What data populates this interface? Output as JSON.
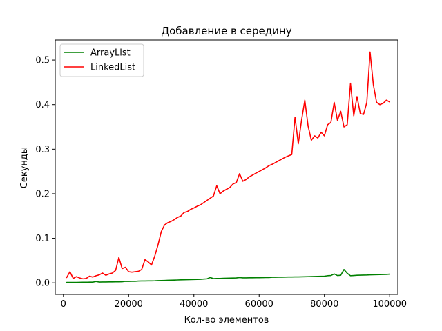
{
  "chart_data": {
    "type": "line",
    "title": "Добавление в середину",
    "xlabel": "Кол-во элементов",
    "ylabel": "Секунды",
    "xlim": [
      -2500,
      102500
    ],
    "ylim": [
      -0.026,
      0.545
    ],
    "xticks": [
      0,
      20000,
      40000,
      60000,
      80000,
      100000
    ],
    "xtick_labels": [
      "0",
      "20000",
      "40000",
      "60000",
      "80000",
      "100000"
    ],
    "yticks": [
      0.0,
      0.1,
      0.2,
      0.3,
      0.4,
      0.5
    ],
    "ytick_labels": [
      "0.0",
      "0.1",
      "0.2",
      "0.3",
      "0.4",
      "0.5"
    ],
    "grid": false,
    "legend": "top-left",
    "x": [
      1000,
      2000,
      3000,
      4000,
      5000,
      6000,
      7000,
      8000,
      9000,
      10000,
      11000,
      12000,
      13000,
      14000,
      15000,
      16000,
      17000,
      18000,
      19000,
      20000,
      21000,
      22000,
      23000,
      24000,
      25000,
      26000,
      27000,
      28000,
      29000,
      30000,
      31000,
      32000,
      33000,
      34000,
      35000,
      36000,
      37000,
      38000,
      39000,
      40000,
      41000,
      42000,
      43000,
      44000,
      45000,
      46000,
      47000,
      48000,
      49000,
      50000,
      51000,
      52000,
      53000,
      54000,
      55000,
      56000,
      57000,
      58000,
      59000,
      60000,
      61000,
      62000,
      63000,
      64000,
      65000,
      66000,
      67000,
      68000,
      69000,
      70000,
      71000,
      72000,
      73000,
      74000,
      75000,
      76000,
      77000,
      78000,
      79000,
      80000,
      81000,
      82000,
      83000,
      84000,
      85000,
      86000,
      87000,
      88000,
      89000,
      90000,
      91000,
      92000,
      93000,
      94000,
      95000,
      96000,
      97000,
      98000,
      99000,
      100000
    ],
    "series": [
      {
        "name": "ArrayList",
        "color": "#008000",
        "values": [
          0.001,
          0.001,
          0.001,
          0.001,
          0.0012,
          0.0013,
          0.0014,
          0.0015,
          0.0016,
          0.003,
          0.0018,
          0.0019,
          0.002,
          0.0021,
          0.0022,
          0.0023,
          0.0024,
          0.0025,
          0.0035,
          0.0033,
          0.0034,
          0.0035,
          0.004,
          0.0042,
          0.0043,
          0.0044,
          0.0045,
          0.0046,
          0.005,
          0.0052,
          0.0055,
          0.0058,
          0.006,
          0.0062,
          0.0065,
          0.0068,
          0.007,
          0.0072,
          0.0074,
          0.0076,
          0.0078,
          0.008,
          0.0085,
          0.009,
          0.012,
          0.0095,
          0.0098,
          0.01,
          0.0102,
          0.0104,
          0.0106,
          0.0108,
          0.011,
          0.012,
          0.0112,
          0.0113,
          0.0114,
          0.0115,
          0.0116,
          0.0117,
          0.0118,
          0.0119,
          0.012,
          0.0125,
          0.0126,
          0.0127,
          0.0128,
          0.013,
          0.0131,
          0.0132,
          0.0133,
          0.0134,
          0.0136,
          0.0138,
          0.014,
          0.0142,
          0.0144,
          0.0146,
          0.0148,
          0.015,
          0.016,
          0.0165,
          0.02,
          0.0165,
          0.017,
          0.03,
          0.0215,
          0.016,
          0.0165,
          0.017,
          0.0172,
          0.0174,
          0.0176,
          0.018,
          0.0182,
          0.0184,
          0.0186,
          0.0188,
          0.019,
          0.0195
        ]
      },
      {
        "name": "LinkedList",
        "color": "#ff0000",
        "values": [
          0.012,
          0.025,
          0.01,
          0.014,
          0.011,
          0.009,
          0.01,
          0.015,
          0.013,
          0.016,
          0.018,
          0.022,
          0.017,
          0.02,
          0.022,
          0.028,
          0.057,
          0.032,
          0.035,
          0.025,
          0.024,
          0.025,
          0.026,
          0.03,
          0.052,
          0.047,
          0.04,
          0.06,
          0.085,
          0.115,
          0.13,
          0.135,
          0.138,
          0.142,
          0.147,
          0.15,
          0.158,
          0.16,
          0.165,
          0.168,
          0.172,
          0.175,
          0.18,
          0.185,
          0.19,
          0.195,
          0.218,
          0.2,
          0.206,
          0.21,
          0.214,
          0.222,
          0.225,
          0.245,
          0.228,
          0.232,
          0.238,
          0.242,
          0.246,
          0.25,
          0.254,
          0.258,
          0.263,
          0.266,
          0.27,
          0.274,
          0.278,
          0.282,
          0.285,
          0.288,
          0.372,
          0.312,
          0.365,
          0.41,
          0.352,
          0.32,
          0.33,
          0.325,
          0.338,
          0.33,
          0.355,
          0.36,
          0.405,
          0.365,
          0.385,
          0.35,
          0.355,
          0.448,
          0.375,
          0.418,
          0.38,
          0.378,
          0.405,
          0.518,
          0.445,
          0.405,
          0.4,
          0.403,
          0.41,
          0.406
        ]
      }
    ]
  }
}
